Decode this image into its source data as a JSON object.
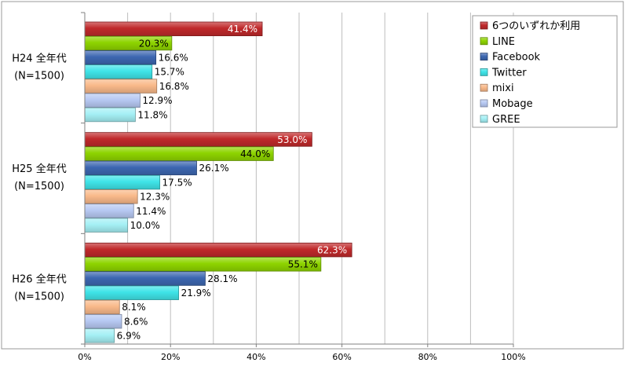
{
  "chart_data": {
    "type": "bar",
    "orientation": "horizontal",
    "categories": [
      {
        "line1": "H24 全年代",
        "line2": "(N=1500)"
      },
      {
        "line1": "H25 全年代",
        "line2": "(N=1500)"
      },
      {
        "line1": "H26 全年代",
        "line2": "(N=1500)"
      }
    ],
    "series": [
      {
        "name": "6つのいずれか利用",
        "color": "#C0292B",
        "values": [
          41.4,
          53.0,
          62.3
        ],
        "labels": [
          "41.4%",
          "53.0%",
          "62.3%"
        ]
      },
      {
        "name": "LINE",
        "color": "#8ED400",
        "values": [
          20.3,
          44.0,
          55.1
        ],
        "labels": [
          "20.3%",
          "44.0%",
          "55.1%"
        ]
      },
      {
        "name": "Facebook",
        "color": "#3D67B1",
        "values": [
          16.6,
          26.1,
          28.1
        ],
        "labels": [
          "16.6%",
          "26.1%",
          "28.1%"
        ]
      },
      {
        "name": "Twitter",
        "color": "#3FE4E8",
        "values": [
          15.7,
          17.5,
          21.9
        ],
        "labels": [
          "15.7%",
          "17.5%",
          "21.9%"
        ]
      },
      {
        "name": "mixi",
        "color": "#F9B98A",
        "values": [
          16.8,
          12.3,
          8.1
        ],
        "labels": [
          "16.8%",
          "12.3%",
          "8.1%"
        ]
      },
      {
        "name": "Mobage",
        "color": "#B7C9F3",
        "values": [
          12.9,
          11.4,
          8.6
        ],
        "labels": [
          "12.9%",
          "11.4%",
          "8.6%"
        ]
      },
      {
        "name": "GREE",
        "color": "#A5F0F5",
        "values": [
          11.8,
          10.0,
          6.9
        ],
        "labels": [
          "11.8%",
          "10.0%",
          "6.9%"
        ]
      }
    ],
    "xlim": [
      0,
      100
    ],
    "xticks": [
      "0%",
      "20%",
      "40%",
      "60%",
      "80%",
      "100%"
    ],
    "grid": "vertical every 10%",
    "legend_position": "top-right"
  }
}
